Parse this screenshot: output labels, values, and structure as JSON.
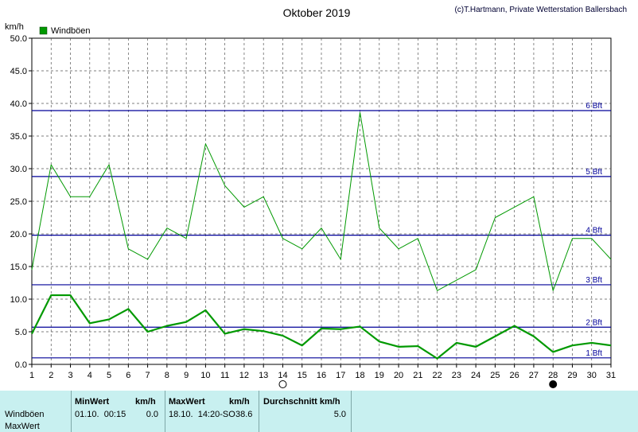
{
  "header": {
    "title": "Oktober 2019",
    "credit": "(c)T.Hartmann, Private Wetterstation Ballersbach",
    "yunit": "km/h"
  },
  "legend": {
    "label": "Windböen",
    "color": "#009900"
  },
  "chart_data": {
    "type": "line",
    "title": "Oktober 2019",
    "ylabel": "km/h",
    "xlabel": "",
    "ylim": [
      0,
      50
    ],
    "xlim": [
      1,
      31
    ],
    "grid": true,
    "legend_position": "top-left",
    "x": [
      1,
      2,
      3,
      4,
      5,
      6,
      7,
      8,
      9,
      10,
      11,
      12,
      13,
      14,
      15,
      16,
      17,
      18,
      19,
      20,
      21,
      22,
      23,
      24,
      25,
      26,
      27,
      28,
      29,
      30,
      31
    ],
    "xticks": [
      "1",
      "2",
      "3",
      "4",
      "5",
      "6",
      "7",
      "8",
      "9",
      "10",
      "11",
      "12",
      "13",
      "14",
      "15",
      "16",
      "17",
      "18",
      "19",
      "20",
      "21",
      "22",
      "23",
      "24",
      "25",
      "26",
      "27",
      "28",
      "29",
      "30",
      "31"
    ],
    "yticks": [
      "0.0",
      "5.0",
      "10.0",
      "15.0",
      "20.0",
      "25.0",
      "30.0",
      "35.0",
      "40.0",
      "45.0",
      "50.0"
    ],
    "series": [
      {
        "name": "Windböen",
        "color": "#009900",
        "values": [
          14.5,
          30.6,
          25.7,
          25.7,
          30.6,
          17.7,
          16.1,
          20.9,
          19.3,
          33.8,
          27.4,
          24.1,
          25.7,
          19.3,
          17.7,
          20.9,
          16.1,
          38.6,
          20.9,
          17.7,
          19.3,
          11.3,
          12.9,
          14.5,
          22.5,
          24.1,
          25.7,
          11.3,
          19.3,
          19.3,
          16.1
        ]
      },
      {
        "values": [
          4.7,
          10.6,
          10.6,
          6.3,
          6.9,
          8.5,
          5.0,
          5.9,
          6.5,
          8.3,
          4.7,
          5.4,
          5.1,
          4.4,
          2.9,
          5.5,
          5.4,
          5.8,
          3.5,
          2.7,
          2.8,
          0.9,
          3.3,
          2.7,
          4.3,
          5.9,
          4.3,
          1.9,
          2.9,
          3.3,
          2.9
        ]
      }
    ],
    "beaufort": [
      {
        "label": "1 Bft",
        "value": 1.0
      },
      {
        "label": "2 Bft",
        "value": 5.7
      },
      {
        "label": "3 Bft",
        "value": 12.2
      },
      {
        "label": "4 Bft",
        "value": 19.8
      },
      {
        "label": "5 Bft",
        "value": 28.8
      },
      {
        "label": "6 Bft",
        "value": 38.9
      }
    ],
    "moon_markers": [
      {
        "day": 14,
        "phase": "full"
      },
      {
        "day": 28,
        "phase": "new"
      }
    ]
  },
  "stats": {
    "row_label_1": "Windböen",
    "row_label_2": "MaxWert",
    "min_header": "MinWert",
    "min_unit": "km/h",
    "min_time": "01.10.  00:15",
    "min_value": "0.0",
    "max_header": "MaxWert",
    "max_unit": "km/h",
    "max_time": "18.10.  14:20-SO",
    "max_value": "38.6",
    "avg_header": "Durchschnitt km/h",
    "avg_value": "5.0"
  }
}
